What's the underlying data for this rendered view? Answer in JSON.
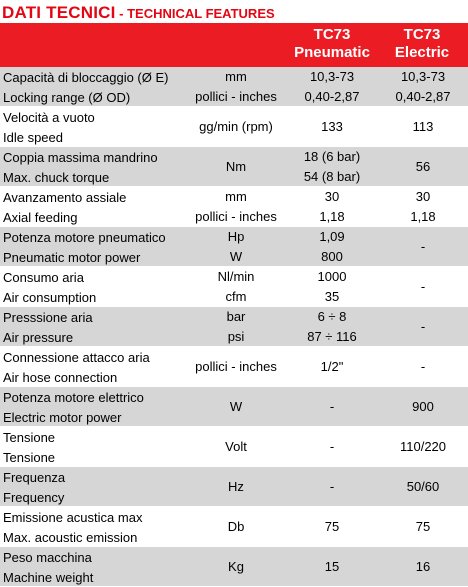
{
  "title": {
    "main": "DATI TECNICI",
    "sub": " - TECHNICAL FEATURES"
  },
  "header": {
    "col_pneumatic": [
      "TC73",
      "Pneumatic"
    ],
    "col_electric": [
      "TC73",
      "Electric"
    ]
  },
  "colors": {
    "accent": "#ec1c24",
    "title": "#e30613",
    "band": "#d6d6d6"
  },
  "rows": [
    {
      "label": [
        "Capacità di bloccaggio (Ø E)",
        "Locking range (Ø OD)"
      ],
      "unit": [
        "mm",
        "pollici - inches"
      ],
      "pneumatic": [
        "10,3-73",
        "0,40-2,87"
      ],
      "electric": [
        "10,3-73",
        "0,40-2,87"
      ],
      "shade": "gray"
    },
    {
      "label": [
        "Velocità a vuoto",
        "Idle speed"
      ],
      "unit": [
        "gg/min (rpm)"
      ],
      "pneumatic": [
        "133"
      ],
      "electric": [
        "113"
      ],
      "shade": "white"
    },
    {
      "label": [
        "Coppia massima mandrino",
        "Max. chuck torque"
      ],
      "unit": [
        "Nm"
      ],
      "pneumatic": [
        "18 (6 bar)",
        "54 (8 bar)"
      ],
      "electric": [
        "56"
      ],
      "shade": "gray"
    },
    {
      "label": [
        "Avanzamento assiale",
        "Axial feeding"
      ],
      "unit": [
        "mm",
        "pollici - inches"
      ],
      "pneumatic": [
        "30",
        "1,18"
      ],
      "electric": [
        "30",
        "1,18"
      ],
      "shade": "white"
    },
    {
      "label": [
        "Potenza motore pneumatico",
        "Pneumatic motor power"
      ],
      "unit": [
        "Hp",
        "W"
      ],
      "pneumatic": [
        "1,09",
        "800"
      ],
      "electric": [
        "-"
      ],
      "shade": "gray"
    },
    {
      "label": [
        "Consumo aria",
        "Air consumption"
      ],
      "unit": [
        "Nl/min",
        "cfm"
      ],
      "pneumatic": [
        "1000",
        "35"
      ],
      "electric": [
        "-"
      ],
      "shade": "white"
    },
    {
      "label": [
        "Presssione aria",
        "Air pressure"
      ],
      "unit": [
        "bar",
        "psi"
      ],
      "pneumatic": [
        "6 ÷ 8",
        "87 ÷ 116"
      ],
      "electric": [
        "-"
      ],
      "shade": "gray"
    },
    {
      "label": [
        "Connessione attacco aria",
        "Air hose connection"
      ],
      "unit": [
        "pollici - inches"
      ],
      "pneumatic": [
        "1/2\""
      ],
      "electric": [
        "-"
      ],
      "shade": "white"
    },
    {
      "label": [
        "Potenza motore elettrico",
        "Electric motor power"
      ],
      "unit": [
        "W"
      ],
      "pneumatic": [
        "-"
      ],
      "electric": [
        "900"
      ],
      "shade": "gray"
    },
    {
      "label": [
        "Tensione",
        "Tensione"
      ],
      "unit": [
        "Volt"
      ],
      "pneumatic": [
        "-"
      ],
      "electric": [
        "110/220"
      ],
      "shade": "white"
    },
    {
      "label": [
        "Frequenza",
        "Frequency"
      ],
      "unit": [
        "Hz"
      ],
      "pneumatic": [
        "-"
      ],
      "electric": [
        "50/60"
      ],
      "shade": "gray"
    },
    {
      "label": [
        "Emissione acustica max",
        "Max. acoustic emission"
      ],
      "unit": [
        "Db"
      ],
      "pneumatic": [
        "75"
      ],
      "electric": [
        "75"
      ],
      "shade": "white"
    },
    {
      "label": [
        "Peso macchina",
        "Machine weight"
      ],
      "unit": [
        "Kg"
      ],
      "pneumatic": [
        "15"
      ],
      "electric": [
        "16"
      ],
      "shade": "gray"
    }
  ]
}
